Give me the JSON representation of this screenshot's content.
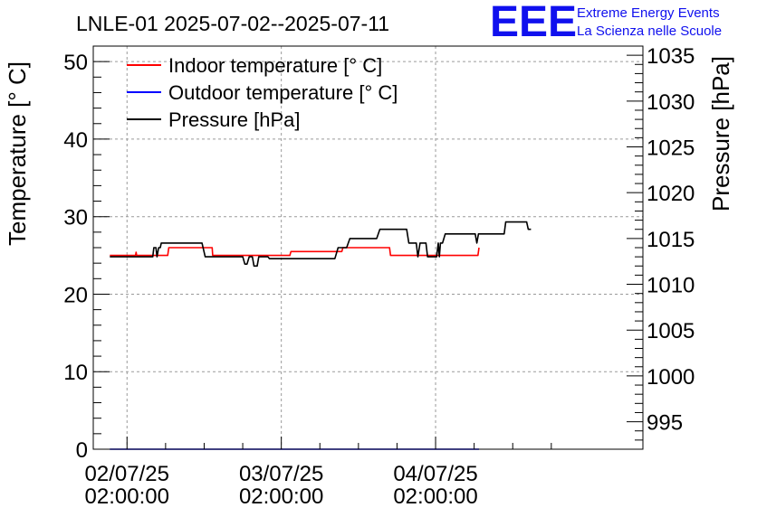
{
  "chart_data": {
    "type": "line",
    "title": "LNLE-01 2025-07-02--2025-07-11",
    "ylabel": "Temperature [° C]",
    "y2label": "Pressure [hPa]",
    "ylim": [
      0,
      52
    ],
    "y2lim": [
      992,
      1036
    ],
    "xlim": [
      "2025-07-01 20:45",
      "2025-07-05 10:15"
    ],
    "y_ticks": [
      "0",
      "10",
      "20",
      "30",
      "40",
      "50"
    ],
    "y2_ticks": [
      "995",
      "1000",
      "1005",
      "1010",
      "1015",
      "1020",
      "1025",
      "1030",
      "1035"
    ],
    "x_ticks": [
      {
        "x": "2025-07-02 02:00",
        "line1": "02/07/25",
        "line2": "02:00:00"
      },
      {
        "x": "2025-07-03 02:00",
        "line1": "03/07/25",
        "line2": "02:00:00"
      },
      {
        "x": "2025-07-04 02:00",
        "line1": "04/07/25",
        "line2": "02:00:00"
      }
    ],
    "grid": true,
    "legend_position": "top-left",
    "series": [
      {
        "name": "Indoor temperature [° C]",
        "axis": "left",
        "color": "#ff0000",
        "points": [
          [
            "2025-07-01 23:20",
            25.0
          ],
          [
            "2025-07-02 03:20",
            25.0
          ],
          [
            "2025-07-02 03:25",
            25.4
          ],
          [
            "2025-07-02 03:30",
            25.0
          ],
          [
            "2025-07-02 08:20",
            25.0
          ],
          [
            "2025-07-02 08:30",
            26.0
          ],
          [
            "2025-07-02 15:15",
            26.0
          ],
          [
            "2025-07-02 15:20",
            25.0
          ],
          [
            "2025-07-03 03:20",
            25.0
          ],
          [
            "2025-07-03 03:30",
            25.5
          ],
          [
            "2025-07-03 11:25",
            25.5
          ],
          [
            "2025-07-03 11:35",
            26.0
          ],
          [
            "2025-07-03 18:50",
            26.0
          ],
          [
            "2025-07-03 19:00",
            25.0
          ],
          [
            "2025-07-04 08:35",
            25.0
          ],
          [
            "2025-07-04 08:45",
            26.0
          ]
        ]
      },
      {
        "name": "Outdoor temperature [° C]",
        "axis": "left",
        "color": "#0000ff",
        "points": [
          [
            "2025-07-01 23:20",
            0.0
          ],
          [
            "2025-07-04 08:45",
            0.0
          ]
        ]
      },
      {
        "name": "Pressure [hPa]",
        "axis": "right",
        "color": "#000000",
        "points": [
          [
            "2025-07-01 23:20",
            1013.0
          ],
          [
            "2025-07-02 06:00",
            1013.0
          ],
          [
            "2025-07-02 06:10",
            1014.0
          ],
          [
            "2025-07-02 06:30",
            1014.0
          ],
          [
            "2025-07-02 06:40",
            1013.0
          ],
          [
            "2025-07-02 06:55",
            1014.0
          ],
          [
            "2025-07-02 07:10",
            1014.0
          ],
          [
            "2025-07-02 07:20",
            1014.5
          ],
          [
            "2025-07-02 13:40",
            1014.5
          ],
          [
            "2025-07-02 14:10",
            1013.0
          ],
          [
            "2025-07-02 20:00",
            1013.0
          ],
          [
            "2025-07-02 20:20",
            1012.2
          ],
          [
            "2025-07-02 20:40",
            1012.2
          ],
          [
            "2025-07-02 21:00",
            1013.0
          ],
          [
            "2025-07-02 21:30",
            1013.0
          ],
          [
            "2025-07-02 21:45",
            1012.0
          ],
          [
            "2025-07-02 22:15",
            1012.0
          ],
          [
            "2025-07-02 22:30",
            1013.0
          ],
          [
            "2025-07-02 23:55",
            1013.0
          ],
          [
            "2025-07-03 00:10",
            1012.8
          ],
          [
            "2025-07-03 10:20",
            1012.8
          ],
          [
            "2025-07-03 10:50",
            1014.0
          ],
          [
            "2025-07-03 12:10",
            1014.0
          ],
          [
            "2025-07-03 12:40",
            1015.0
          ],
          [
            "2025-07-03 16:50",
            1015.0
          ],
          [
            "2025-07-03 17:20",
            1016.0
          ],
          [
            "2025-07-03 21:30",
            1016.0
          ],
          [
            "2025-07-03 21:50",
            1014.5
          ],
          [
            "2025-07-03 23:00",
            1014.5
          ],
          [
            "2025-07-03 23:15",
            1013.0
          ],
          [
            "2025-07-03 23:35",
            1014.5
          ],
          [
            "2025-07-04 00:30",
            1014.5
          ],
          [
            "2025-07-04 00:45",
            1013.0
          ],
          [
            "2025-07-04 02:10",
            1013.0
          ],
          [
            "2025-07-04 02:25",
            1014.5
          ],
          [
            "2025-07-04 02:35",
            1013.0
          ],
          [
            "2025-07-04 02:45",
            1014.5
          ],
          [
            "2025-07-04 03:05",
            1014.5
          ],
          [
            "2025-07-04 03:30",
            1015.5
          ],
          [
            "2025-07-04 08:10",
            1015.5
          ],
          [
            "2025-07-04 08:25",
            1014.5
          ],
          [
            "2025-07-04 08:40",
            1015.5
          ],
          [
            "2025-07-04 12:40",
            1015.5
          ],
          [
            "2025-07-04 12:55",
            1016.8
          ],
          [
            "2025-07-04 16:10",
            1016.8
          ],
          [
            "2025-07-04 16:25",
            1016.0
          ],
          [
            "2025-07-04 16:50",
            1016.0
          ]
        ]
      }
    ]
  },
  "logo": {
    "mark": "EEE",
    "line1": "Extreme Energy Events",
    "line2": "La Scienza nelle Scuole",
    "color": "#1010ee"
  }
}
